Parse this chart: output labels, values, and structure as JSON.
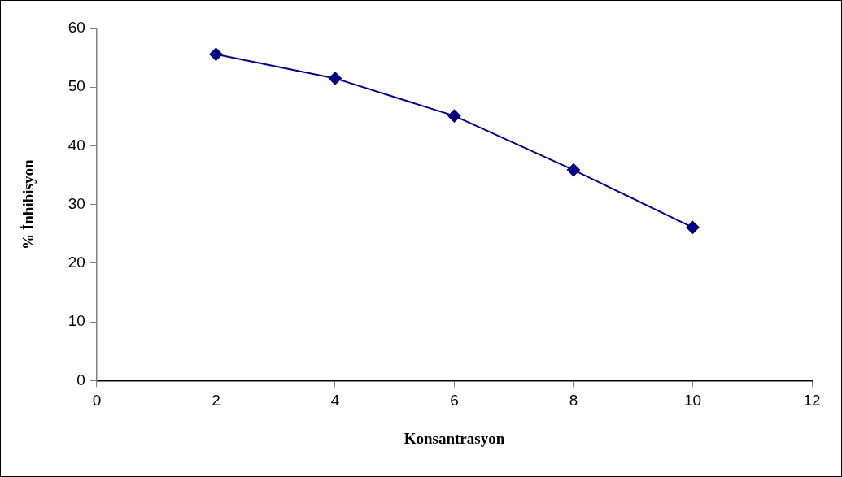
{
  "chart_data": {
    "type": "line",
    "xlabel": "Konsantrasyon",
    "ylabel": "% İnhibisyon",
    "x": [
      2,
      4,
      6,
      8,
      10
    ],
    "series": [
      {
        "color": "#000080",
        "values": [
          55.6,
          51.5,
          45.1,
          35.9,
          26.1
        ]
      }
    ],
    "xlim": [
      0,
      12
    ],
    "xticks": [
      0,
      2,
      4,
      6,
      8,
      10,
      12
    ],
    "ylim": [
      0,
      60
    ],
    "yticks": [
      0,
      10,
      20,
      30,
      40,
      50,
      60
    ],
    "grid": false,
    "legend": false,
    "marker": "diamond",
    "line_style": "solid"
  }
}
